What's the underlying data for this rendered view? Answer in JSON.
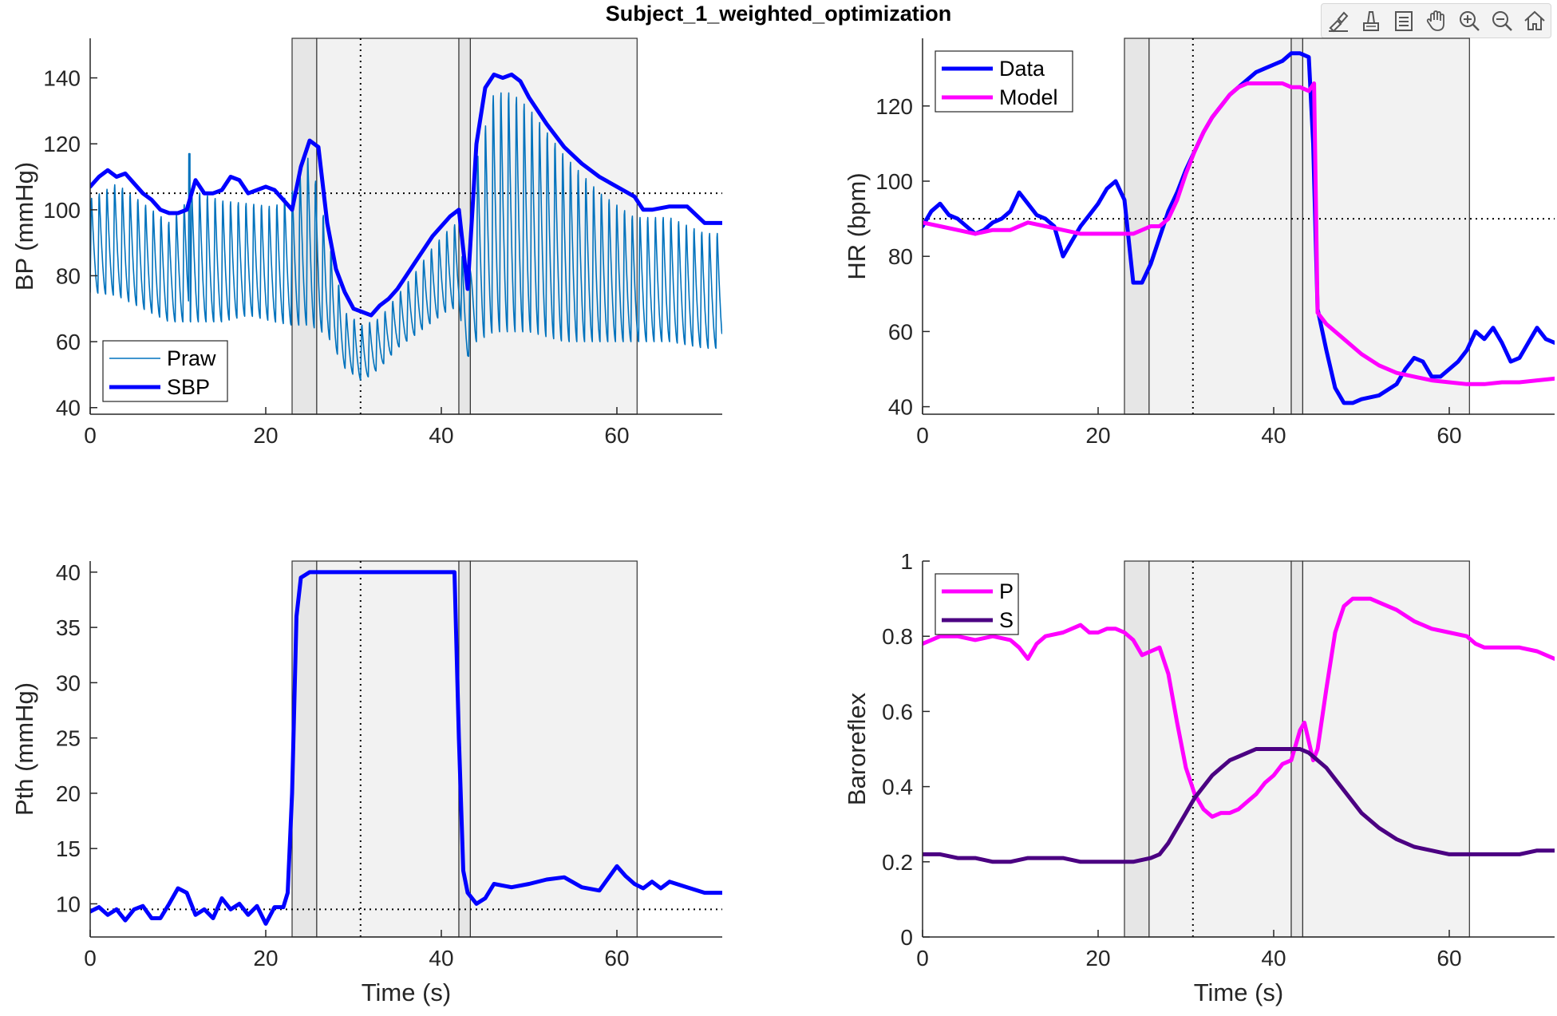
{
  "figure": {
    "title": "Subject_1_weighted_optimization"
  },
  "toolbar": {
    "items": [
      {
        "name": "brush-icon",
        "label": ""
      },
      {
        "name": "data-cursor-icon",
        "label": ""
      },
      {
        "name": "colorbar-icon",
        "label": ""
      },
      {
        "name": "pan-hand-icon",
        "label": ""
      },
      {
        "name": "zoom-in-icon",
        "label": ""
      },
      {
        "name": "zoom-out-icon",
        "label": ""
      },
      {
        "name": "home-icon",
        "label": ""
      }
    ]
  },
  "colors": {
    "blue": "#0000ff",
    "raw": "#0072bd",
    "magenta": "#ff00ff",
    "purple": "#4b0082",
    "shade_dark": "#e6e6e6",
    "shade_light": "#f2f2f2"
  },
  "phases": {
    "dark": [
      [
        23,
        25.8
      ],
      [
        42,
        43.3
      ]
    ],
    "light": [
      [
        25.8,
        42
      ],
      [
        43.3,
        62.3
      ]
    ],
    "marker": 30.8
  },
  "chart_data": [
    {
      "id": "bp",
      "type": "line",
      "title": "",
      "xlabel": "",
      "ylabel": "BP (mmHg)",
      "xlim": [
        0,
        72
      ],
      "ylim": [
        38,
        152
      ],
      "xticks": [
        0,
        20,
        40,
        60
      ],
      "yticks": [
        40,
        60,
        80,
        100,
        120,
        140
      ],
      "hline": 105,
      "legend": {
        "position": "bottom-left",
        "entries": [
          "Praw",
          "SBP"
        ]
      },
      "series": [
        {
          "name": "SBP",
          "x": [
            0,
            1,
            2,
            3,
            4,
            5,
            6,
            7,
            8,
            9,
            10,
            11,
            12,
            13,
            14,
            15,
            16,
            17,
            18,
            19,
            20,
            21,
            22,
            23,
            24,
            25,
            26,
            27,
            28,
            29,
            30,
            31,
            32,
            33,
            34,
            35,
            36,
            37,
            38,
            39,
            40,
            41,
            42,
            43,
            44,
            45,
            46,
            47,
            48,
            49,
            50,
            52,
            54,
            56,
            58,
            60,
            62,
            63,
            64,
            66,
            68,
            70,
            72
          ],
          "y": [
            107,
            110,
            112,
            110,
            111,
            108,
            105,
            103,
            100,
            99,
            99,
            100,
            109,
            105,
            105,
            106,
            110,
            109,
            105,
            106,
            107,
            106,
            103,
            100,
            113,
            121,
            119,
            96,
            82,
            75,
            70,
            69,
            68,
            71,
            73,
            76,
            80,
            84,
            88,
            92,
            95,
            98,
            100,
            76,
            120,
            137,
            141,
            140,
            141,
            139,
            134,
            126,
            119,
            114,
            110,
            107,
            104,
            100,
            100,
            101,
            101,
            96,
            96
          ]
        },
        {
          "name": "Praw",
          "x": [
            0,
            3,
            6,
            9,
            12,
            15,
            18,
            21,
            23,
            25,
            27,
            29,
            31,
            33,
            35,
            37,
            39,
            41,
            42,
            43,
            44,
            46,
            48,
            50,
            54,
            58,
            62,
            66,
            70,
            72
          ],
          "y_upper": [
            105,
            110,
            104,
            98,
            108,
            105,
            104,
            103,
            108,
            120,
            95,
            70,
            66,
            68,
            75,
            82,
            90,
            96,
            98,
            70,
            118,
            140,
            140,
            135,
            120,
            108,
            100,
            100,
            95,
            95
          ],
          "y_lower": [
            75,
            74,
            70,
            66,
            66,
            66,
            68,
            66,
            65,
            65,
            62,
            52,
            48,
            52,
            58,
            62,
            66,
            70,
            70,
            55,
            60,
            63,
            63,
            63,
            60,
            60,
            60,
            60,
            58,
            58
          ],
          "peak_x": 11.3,
          "peak_y": 117
        }
      ]
    },
    {
      "id": "hr",
      "type": "line",
      "title": "",
      "xlabel": "",
      "ylabel": "HR (bpm)",
      "xlim": [
        0,
        72
      ],
      "ylim": [
        38,
        138
      ],
      "xticks": [
        0,
        20,
        40,
        60
      ],
      "yticks": [
        40,
        60,
        80,
        100,
        120
      ],
      "hline": 90,
      "legend": {
        "position": "top-left",
        "entries": [
          "Data",
          "Model"
        ]
      },
      "series": [
        {
          "name": "Data",
          "x": [
            0,
            1,
            2,
            3,
            4,
            5,
            6,
            7,
            8,
            9,
            10,
            11,
            12,
            13,
            14,
            15,
            16,
            17,
            18,
            19,
            20,
            21,
            22,
            23,
            24,
            25,
            26,
            27,
            28,
            29,
            30,
            31,
            32,
            33,
            34,
            35,
            36,
            37,
            38,
            39,
            40,
            41,
            42,
            43,
            44,
            44.5,
            45,
            46,
            47,
            48,
            49,
            50,
            52,
            54,
            55,
            56,
            57,
            58,
            59,
            60,
            61,
            62,
            63,
            64,
            65,
            66,
            67,
            68,
            69,
            70,
            71,
            72
          ],
          "y": [
            88,
            92,
            94,
            91,
            90,
            88,
            86,
            87,
            89,
            90,
            92,
            97,
            94,
            91,
            90,
            88,
            80,
            84,
            88,
            91,
            94,
            98,
            100,
            95,
            73,
            73,
            78,
            85,
            92,
            97,
            103,
            108,
            113,
            117,
            120,
            123,
            125,
            127,
            129,
            130,
            131,
            132,
            134,
            134,
            133,
            110,
            66,
            55,
            45,
            41,
            41,
            42,
            43,
            46,
            50,
            53,
            52,
            48,
            48,
            50,
            52,
            55,
            60,
            58,
            61,
            57,
            52,
            53,
            57,
            61,
            58,
            57
          ]
        },
        {
          "name": "Model",
          "x": [
            0,
            2,
            4,
            6,
            8,
            10,
            12,
            14,
            16,
            18,
            20,
            22,
            23,
            24,
            26,
            27,
            28,
            29,
            30,
            31,
            32,
            33,
            34,
            35,
            36,
            37,
            38,
            39,
            40,
            41,
            42,
            43,
            44,
            44.6,
            45,
            46,
            48,
            50,
            52,
            54,
            56,
            58,
            60,
            62,
            64,
            66,
            68,
            70,
            72
          ],
          "y": [
            89,
            88,
            87,
            86,
            87,
            87,
            89,
            88,
            87,
            86,
            86,
            86,
            86,
            86,
            88,
            88,
            90,
            95,
            102,
            108,
            113,
            117,
            120,
            123,
            125,
            126,
            126,
            126,
            126,
            126,
            125,
            125,
            124,
            126,
            65,
            62,
            58,
            54,
            51,
            49,
            48,
            47,
            46.5,
            46,
            46,
            46.5,
            46.5,
            47,
            47.5
          ]
        }
      ]
    },
    {
      "id": "pth",
      "type": "line",
      "title": "",
      "xlabel": "Time (s)",
      "ylabel": "Pth (mmHg)",
      "xlim": [
        0,
        72
      ],
      "ylim": [
        7,
        41
      ],
      "xticks": [
        0,
        20,
        40,
        60
      ],
      "yticks": [
        10,
        15,
        20,
        25,
        30,
        35,
        40
      ],
      "hline": 9.5,
      "legend": null,
      "series": [
        {
          "name": "",
          "x": [
            0,
            1,
            2,
            3,
            4,
            5,
            6,
            7,
            8,
            9,
            10,
            11,
            12,
            13,
            14,
            15,
            16,
            17,
            18,
            19,
            20,
            21,
            22,
            22.5,
            23,
            23.5,
            24,
            25,
            26,
            30,
            35,
            40,
            41.5,
            42,
            42.5,
            43,
            44,
            45,
            46,
            48,
            50,
            52,
            54,
            56,
            58,
            60,
            61,
            62,
            63,
            64,
            65,
            66,
            68,
            70,
            72
          ],
          "y": [
            9.3,
            9.7,
            9,
            9.5,
            8.5,
            9.5,
            9.8,
            8.7,
            8.7,
            10,
            11.4,
            11,
            9,
            9.5,
            8.7,
            10.5,
            9.5,
            10,
            9,
            9.8,
            8.2,
            9.7,
            9.7,
            11,
            20,
            36,
            39.5,
            40,
            40,
            40,
            40,
            40,
            40,
            25,
            13,
            11,
            10,
            10.5,
            11.8,
            11.5,
            11.8,
            12.2,
            12.4,
            11.5,
            11.2,
            13.4,
            12.5,
            11.8,
            11.4,
            12,
            11.4,
            12,
            11.5,
            11,
            11
          ]
        }
      ]
    },
    {
      "id": "baro",
      "type": "line",
      "title": "",
      "xlabel": "Time (s)",
      "ylabel": "Baroreflex",
      "xlim": [
        0,
        72
      ],
      "ylim": [
        0,
        1
      ],
      "xticks": [
        0,
        20,
        40,
        60
      ],
      "yticks": [
        0,
        0.2,
        0.4,
        0.6,
        0.8,
        1
      ],
      "hline": null,
      "legend": {
        "position": "top-left",
        "entries": [
          "P",
          "S"
        ]
      },
      "series": [
        {
          "name": "P",
          "x": [
            0,
            1,
            2,
            4,
            6,
            8,
            10,
            11,
            12,
            13,
            14,
            16,
            18,
            19,
            20,
            21,
            22,
            23,
            24,
            25,
            26,
            27,
            28,
            29,
            30,
            31,
            32,
            33,
            34,
            35,
            36,
            37,
            38,
            39,
            40,
            41,
            42,
            43,
            43.5,
            44,
            44.5,
            45,
            46,
            47,
            48,
            49,
            50,
            51,
            52,
            54,
            56,
            58,
            60,
            62,
            63,
            64,
            66,
            68,
            70,
            72
          ],
          "y": [
            0.78,
            0.79,
            0.8,
            0.8,
            0.79,
            0.8,
            0.79,
            0.77,
            0.74,
            0.78,
            0.8,
            0.81,
            0.83,
            0.81,
            0.81,
            0.82,
            0.82,
            0.81,
            0.79,
            0.75,
            0.76,
            0.77,
            0.7,
            0.57,
            0.45,
            0.38,
            0.34,
            0.32,
            0.33,
            0.33,
            0.34,
            0.36,
            0.38,
            0.41,
            0.43,
            0.46,
            0.47,
            0.55,
            0.57,
            0.52,
            0.47,
            0.5,
            0.66,
            0.81,
            0.88,
            0.9,
            0.9,
            0.9,
            0.89,
            0.87,
            0.84,
            0.82,
            0.81,
            0.8,
            0.78,
            0.77,
            0.77,
            0.77,
            0.76,
            0.74
          ]
        },
        {
          "name": "S",
          "x": [
            0,
            2,
            4,
            6,
            8,
            10,
            12,
            14,
            16,
            18,
            20,
            22,
            23,
            24,
            26,
            27,
            28,
            29,
            30,
            31,
            32,
            33,
            34,
            35,
            36,
            37,
            38,
            39,
            40,
            41,
            42,
            43,
            44,
            45,
            46,
            47,
            48,
            49,
            50,
            52,
            54,
            56,
            58,
            60,
            62,
            64,
            66,
            68,
            70,
            72
          ],
          "y": [
            0.22,
            0.22,
            0.21,
            0.21,
            0.2,
            0.2,
            0.21,
            0.21,
            0.21,
            0.2,
            0.2,
            0.2,
            0.2,
            0.2,
            0.21,
            0.22,
            0.25,
            0.29,
            0.33,
            0.37,
            0.4,
            0.43,
            0.45,
            0.47,
            0.48,
            0.49,
            0.5,
            0.5,
            0.5,
            0.5,
            0.5,
            0.5,
            0.49,
            0.47,
            0.45,
            0.42,
            0.39,
            0.36,
            0.33,
            0.29,
            0.26,
            0.24,
            0.23,
            0.22,
            0.22,
            0.22,
            0.22,
            0.22,
            0.23,
            0.23
          ]
        }
      ]
    }
  ]
}
